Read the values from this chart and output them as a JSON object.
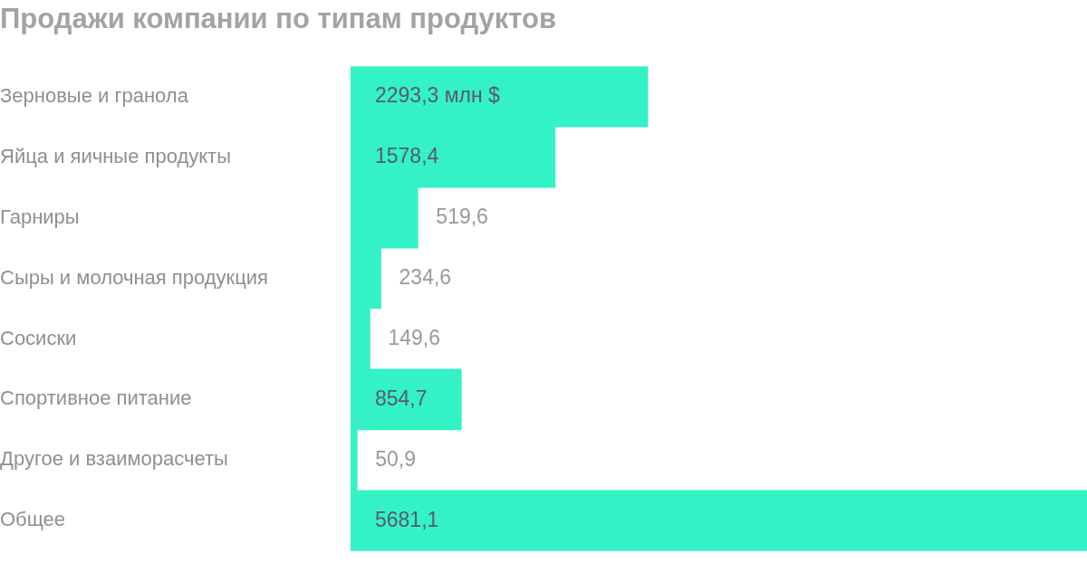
{
  "chart_data": {
    "type": "bar",
    "orientation": "horizontal",
    "title": "Продажи компании по типам продуктов",
    "categories": [
      "Зерновые и гранола",
      "Яйца и яичные продукты",
      "Гарниры",
      "Сыры и молочная продукция",
      "Сосиски",
      "Спортивное питание",
      "Другое и взаиморасчеты",
      "Общее"
    ],
    "values": [
      2293.3,
      1578.4,
      519.6,
      234.6,
      149.6,
      854.7,
      50.9,
      5681.1
    ],
    "value_labels": [
      "2293,3 млн $",
      "1578,4",
      "519,6",
      "234,6",
      "149,6",
      "854,7",
      "50,9",
      "5681,1"
    ],
    "color": "#33f2c6",
    "grid": false,
    "legend": false
  }
}
